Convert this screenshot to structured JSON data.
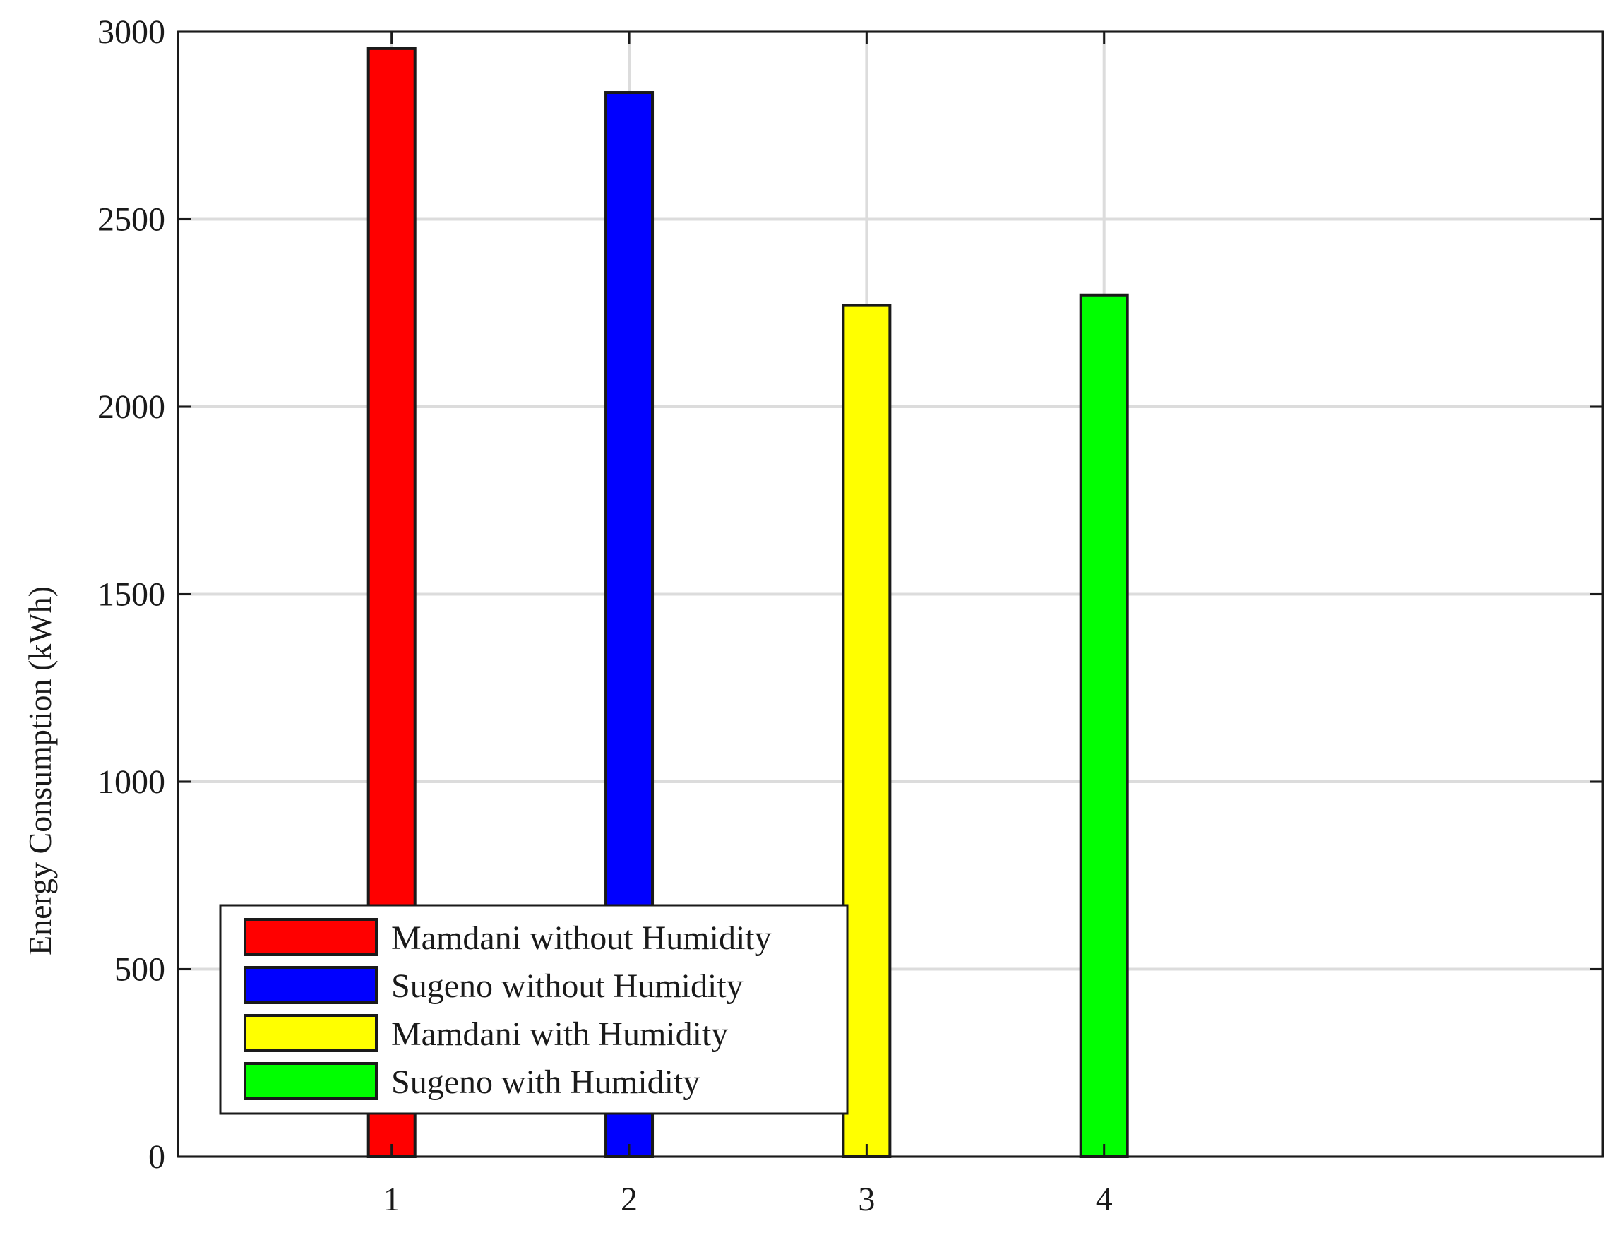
{
  "chart_data": {
    "type": "bar",
    "title": "",
    "xlabel": "",
    "ylabel": "Energy Consumption (kWh)",
    "categories": [
      "1",
      "2",
      "3",
      "4"
    ],
    "xlim": [
      0.1,
      6.1
    ],
    "ylim": [
      0,
      3000
    ],
    "yticks": [
      0,
      500,
      1000,
      1500,
      2000,
      2500,
      3000
    ],
    "xticks": [
      1,
      2,
      3,
      4
    ],
    "grid": true,
    "legend_position": "bottom-left",
    "series": [
      {
        "name": "Mamdani without Humidity",
        "x": 1,
        "value": 2955,
        "color": "#ff0000"
      },
      {
        "name": "Sugeno without Humidity",
        "x": 2,
        "value": 2838,
        "color": "#0000ff"
      },
      {
        "name": "Mamdani with Humidity",
        "x": 3,
        "value": 2270,
        "color": "#ffff00"
      },
      {
        "name": "Sugeno with Humidity",
        "x": 4,
        "value": 2298,
        "color": "#00ff00"
      }
    ]
  }
}
